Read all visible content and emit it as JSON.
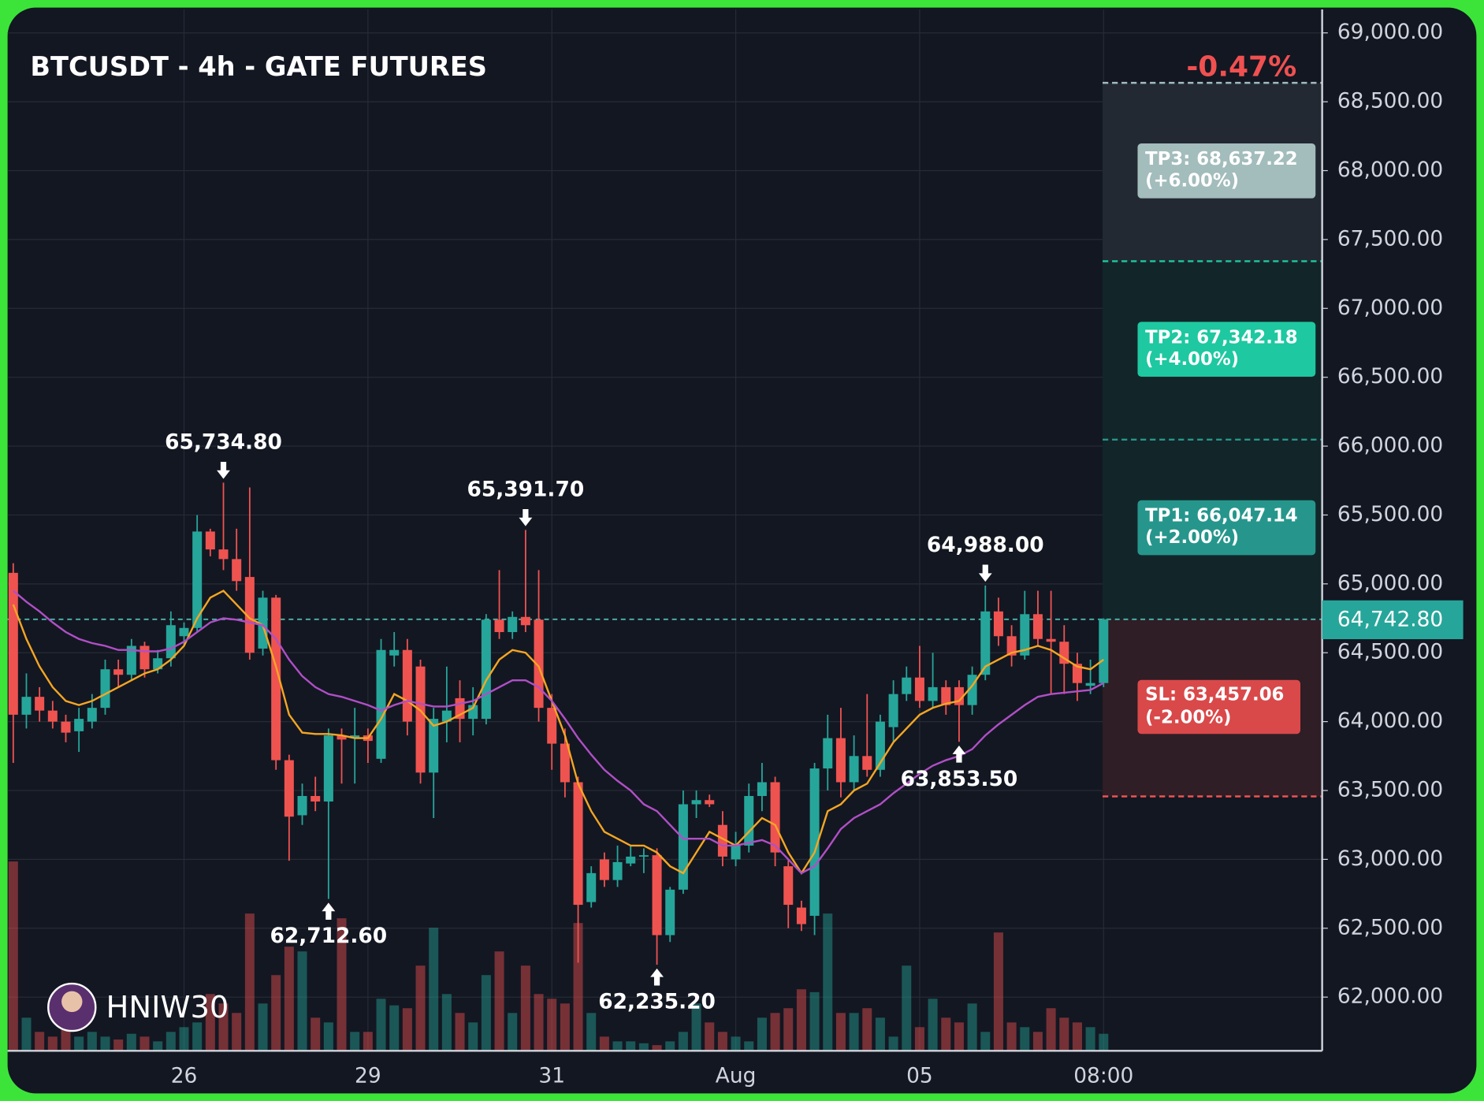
{
  "chart_data": {
    "type": "candlestick",
    "title": "BTCUSDT - 4h - GATE FUTURES",
    "watermark": "HNIW30",
    "categories": [
      null,
      null,
      null,
      null,
      null,
      null,
      null,
      null,
      null,
      null,
      null,
      null,
      null,
      "26",
      null,
      null,
      null,
      null,
      null,
      null,
      null,
      null,
      null,
      null,
      null,
      null,
      null,
      "29",
      null,
      null,
      null,
      null,
      null,
      null,
      null,
      null,
      null,
      null,
      null,
      null,
      null,
      "31",
      null,
      null,
      null,
      null,
      null,
      null,
      null,
      null,
      null,
      null,
      null,
      null,
      null,
      "Aug",
      null,
      null,
      null,
      null,
      null,
      null,
      null,
      null,
      null,
      null,
      null,
      null,
      null,
      "05",
      null,
      null,
      null,
      null,
      null,
      null,
      null,
      null,
      null,
      null,
      null,
      null,
      null,
      "08:00"
    ],
    "up_color": "#26a69a",
    "down_color": "#ef5350",
    "candles": [
      [
        65080,
        65150,
        63700,
        64050
      ],
      [
        64050,
        64350,
        63950,
        64180
      ],
      [
        64180,
        64250,
        64000,
        64080
      ],
      [
        64080,
        64150,
        63950,
        64000
      ],
      [
        64000,
        64050,
        63850,
        63920
      ],
      [
        63930,
        64100,
        63780,
        64020
      ],
      [
        64000,
        64200,
        63950,
        64100
      ],
      [
        64100,
        64450,
        64050,
        64380
      ],
      [
        64380,
        64450,
        64250,
        64340
      ],
      [
        64340,
        64600,
        64300,
        64550
      ],
      [
        64550,
        64580,
        64320,
        64380
      ],
      [
        64380,
        64520,
        64350,
        64460
      ],
      [
        64460,
        64800,
        64400,
        64700
      ],
      [
        64620,
        64720,
        64550,
        64680
      ],
      [
        64680,
        65500,
        64650,
        65380
      ],
      [
        65380,
        65400,
        65200,
        65250
      ],
      [
        65250,
        65734.8,
        65100,
        65180
      ],
      [
        65180,
        65400,
        64950,
        65020
      ],
      [
        65050,
        65700,
        64450,
        64500
      ],
      [
        64530,
        64950,
        64480,
        64900
      ],
      [
        64900,
        64920,
        63650,
        63720
      ],
      [
        63720,
        63760,
        62990,
        63310
      ],
      [
        63320,
        63550,
        63250,
        63460
      ],
      [
        63460,
        63600,
        63350,
        63420
      ],
      [
        63420,
        63950,
        62712.6,
        63900
      ],
      [
        63900,
        63950,
        63550,
        63870
      ],
      [
        63880,
        64100,
        63550,
        63900
      ],
      [
        63900,
        63950,
        63700,
        63860
      ],
      [
        63730,
        64600,
        63700,
        64520
      ],
      [
        64480,
        64650,
        64400,
        64520
      ],
      [
        64520,
        64600,
        63900,
        64000
      ],
      [
        64400,
        64450,
        63550,
        63630
      ],
      [
        63630,
        64100,
        63300,
        64020
      ],
      [
        64000,
        64400,
        63850,
        64080
      ],
      [
        64170,
        64300,
        63850,
        64020
      ],
      [
        64020,
        64250,
        63900,
        64120
      ],
      [
        64020,
        64780,
        63980,
        64740
      ],
      [
        64740,
        65100,
        64600,
        64650
      ],
      [
        64650,
        64800,
        64600,
        64760
      ],
      [
        64760,
        65391.7,
        64650,
        64700
      ],
      [
        64740,
        65100,
        64000,
        64100
      ],
      [
        64100,
        64200,
        63650,
        63840
      ],
      [
        63840,
        63950,
        63450,
        63560
      ],
      [
        63560,
        63600,
        62250,
        62670
      ],
      [
        62690,
        62950,
        62650,
        62900
      ],
      [
        63000,
        63050,
        62800,
        62850
      ],
      [
        62850,
        63100,
        62800,
        62980
      ],
      [
        62970,
        63100,
        62950,
        63020
      ],
      [
        63020,
        63080,
        62900,
        63030
      ],
      [
        63030,
        63080,
        62235.2,
        62450
      ],
      [
        62450,
        62800,
        62400,
        62780
      ],
      [
        62780,
        63500,
        62750,
        63400
      ],
      [
        63400,
        63500,
        63300,
        63430
      ],
      [
        63430,
        63470,
        63380,
        63400
      ],
      [
        63250,
        63350,
        62950,
        63020
      ],
      [
        63000,
        63200,
        62950,
        63100
      ],
      [
        63100,
        63550,
        63050,
        63460
      ],
      [
        63460,
        63700,
        63350,
        63560
      ],
      [
        63560,
        63600,
        62950,
        63050
      ],
      [
        62950,
        63000,
        62500,
        62670
      ],
      [
        62650,
        62700,
        62480,
        62530
      ],
      [
        62590,
        63700,
        62450,
        63660
      ],
      [
        63660,
        64050,
        63500,
        63880
      ],
      [
        63880,
        64100,
        63450,
        63560
      ],
      [
        63560,
        63900,
        63500,
        63750
      ],
      [
        63750,
        64200,
        63600,
        63650
      ],
      [
        63650,
        64050,
        63600,
        64000
      ],
      [
        63960,
        64300,
        63850,
        64200
      ],
      [
        64200,
        64400,
        64150,
        64320
      ],
      [
        64320,
        64550,
        64100,
        64150
      ],
      [
        64150,
        64500,
        64100,
        64250
      ],
      [
        64250,
        64300,
        64050,
        64120
      ],
      [
        64250,
        64300,
        63853.5,
        64120
      ],
      [
        64120,
        64400,
        64050,
        64340
      ],
      [
        64340,
        64988,
        64300,
        64800
      ],
      [
        64800,
        64900,
        64550,
        64620
      ],
      [
        64620,
        64700,
        64400,
        64480
      ],
      [
        64480,
        64950,
        64450,
        64780
      ],
      [
        64780,
        64950,
        64550,
        64600
      ],
      [
        64600,
        64950,
        64200,
        64580
      ],
      [
        64580,
        64700,
        64200,
        64420
      ],
      [
        64420,
        64500,
        64150,
        64280
      ],
      [
        64260,
        64450,
        64200,
        64280
      ],
      [
        64280,
        64750,
        64250,
        64742.8
      ]
    ],
    "volume": [
      200,
      35,
      20,
      15,
      25,
      15,
      20,
      15,
      12,
      18,
      15,
      10,
      20,
      25,
      30,
      60,
      50,
      40,
      145,
      50,
      80,
      110,
      105,
      35,
      30,
      140,
      20,
      20,
      55,
      48,
      45,
      90,
      130,
      60,
      40,
      30,
      80,
      105,
      40,
      90,
      60,
      55,
      50,
      135,
      40,
      15,
      10,
      10,
      8,
      6,
      10,
      20,
      50,
      30,
      20,
      15,
      10,
      35,
      40,
      45,
      65,
      62,
      145,
      40,
      40,
      45,
      35,
      15,
      90,
      25,
      55,
      35,
      30,
      50,
      20,
      125,
      30,
      25,
      20,
      45,
      35,
      30,
      25,
      18
    ],
    "high_labels": [
      null,
      null,
      null,
      null,
      null,
      null,
      null,
      null,
      null,
      null,
      null,
      null,
      null,
      null,
      null,
      null,
      "65,734.80",
      null,
      null,
      null,
      null,
      null,
      null,
      null,
      null,
      null,
      null,
      null,
      null,
      null,
      null,
      null,
      null,
      null,
      null,
      null,
      null,
      null,
      null,
      "65,391.70",
      null,
      null,
      null,
      null,
      null,
      null,
      null,
      null,
      null,
      null,
      null,
      null,
      null,
      null,
      null,
      null,
      null,
      null,
      null,
      null,
      null,
      null,
      null,
      null,
      null,
      null,
      null,
      null,
      null,
      null,
      null,
      null,
      null,
      null,
      "64,988.00",
      null,
      null,
      null,
      null,
      null,
      null,
      null,
      null,
      null
    ],
    "low_labels": [
      null,
      null,
      null,
      null,
      null,
      null,
      null,
      null,
      null,
      null,
      null,
      null,
      null,
      null,
      null,
      null,
      null,
      null,
      null,
      null,
      null,
      null,
      null,
      null,
      "62,712.60",
      null,
      null,
      null,
      null,
      null,
      null,
      null,
      null,
      null,
      null,
      null,
      null,
      null,
      null,
      null,
      null,
      null,
      null,
      null,
      null,
      null,
      null,
      null,
      null,
      "62,235.20",
      null,
      null,
      null,
      null,
      null,
      null,
      null,
      null,
      null,
      null,
      null,
      null,
      null,
      null,
      null,
      null,
      null,
      null,
      null,
      null,
      null,
      null,
      "63,853.50",
      null,
      null,
      null,
      null,
      null,
      null,
      null,
      null,
      null,
      null,
      null
    ],
    "series": [
      {
        "color": "#f5a623",
        "values": [
          64850,
          64600,
          64400,
          64250,
          64150,
          64120,
          64150,
          64200,
          64250,
          64300,
          64350,
          64380,
          64450,
          64550,
          64750,
          64900,
          64950,
          64850,
          64750,
          64700,
          64400,
          64050,
          63920,
          63910,
          63910,
          63900,
          63880,
          63880,
          64020,
          64200,
          64150,
          64080,
          63970,
          64000,
          64050,
          64100,
          64300,
          64450,
          64520,
          64500,
          64400,
          64150,
          63900,
          63550,
          63350,
          63200,
          63150,
          63100,
          63100,
          63050,
          62950,
          62900,
          63050,
          63200,
          63150,
          63100,
          63200,
          63300,
          63250,
          63050,
          62900,
          63050,
          63350,
          63400,
          63500,
          63550,
          63700,
          63850,
          63950,
          64050,
          64100,
          64130,
          64150,
          64260,
          64400,
          64450,
          64500,
          64520,
          64550,
          64520,
          64460,
          64400,
          64380,
          64450
        ]
      },
      {
        "color": "#b04fc6",
        "values": [
          64950,
          64870,
          64800,
          64720,
          64650,
          64600,
          64570,
          64550,
          64520,
          64520,
          64510,
          64510,
          64530,
          64580,
          64650,
          64720,
          64750,
          64740,
          64720,
          64700,
          64600,
          64450,
          64330,
          64250,
          64200,
          64180,
          64150,
          64120,
          64080,
          64120,
          64150,
          64130,
          64110,
          64110,
          64130,
          64150,
          64200,
          64250,
          64300,
          64300,
          64250,
          64150,
          64020,
          63880,
          63760,
          63650,
          63570,
          63500,
          63400,
          63350,
          63250,
          63150,
          63150,
          63150,
          63100,
          63100,
          63120,
          63140,
          63100,
          63000,
          62900,
          62950,
          63080,
          63220,
          63300,
          63350,
          63400,
          63480,
          63550,
          63620,
          63680,
          63720,
          63750,
          63800,
          63900,
          63980,
          64050,
          64120,
          64180,
          64200,
          64210,
          64220,
          64230,
          64280
        ]
      }
    ],
    "ylim": [
      61610,
      69170
    ],
    "yticks": [
      {
        "value": 62000,
        "label": "62,000.00"
      },
      {
        "value": 62500,
        "label": "62,500.00"
      },
      {
        "value": 63000,
        "label": "63,000.00"
      },
      {
        "value": 63500,
        "label": "63,500.00"
      },
      {
        "value": 64000,
        "label": "64,000.00"
      },
      {
        "value": 64500,
        "label": "64,500.00"
      },
      {
        "value": 65000,
        "label": "65,000.00"
      },
      {
        "value": 65500,
        "label": "65,500.00"
      },
      {
        "value": 66000,
        "label": "66,000.00"
      },
      {
        "value": 66500,
        "label": "66,500.00"
      },
      {
        "value": 67000,
        "label": "67,000.00"
      },
      {
        "value": 67500,
        "label": "67,500.00"
      },
      {
        "value": 68000,
        "label": "68,000.00"
      },
      {
        "value": 68500,
        "label": "68,500.00"
      },
      {
        "value": 69000,
        "label": "69,000.00"
      }
    ],
    "grid": true,
    "position": {
      "change": "-0.47%",
      "entry": {
        "value": 64742.8,
        "label": "64,742.80"
      },
      "stop": {
        "value": 63457.06,
        "label": "SL: 63,457.06",
        "change": "(-2.00%)",
        "color": "#d9494a"
      },
      "targets": [
        {
          "value": 66047.14,
          "label": "TP1: 66,047.14",
          "change": "(+2.00%)",
          "color": "#26968c"
        },
        {
          "value": 67342.18,
          "label": "TP2: 67,342.18",
          "change": "(+4.00%)",
          "color": "#1ec8a0"
        },
        {
          "value": 68637.22,
          "label": "TP3: 68,637.22",
          "change": "(+6.00%)",
          "color": "#a3bcbc"
        }
      ]
    }
  }
}
